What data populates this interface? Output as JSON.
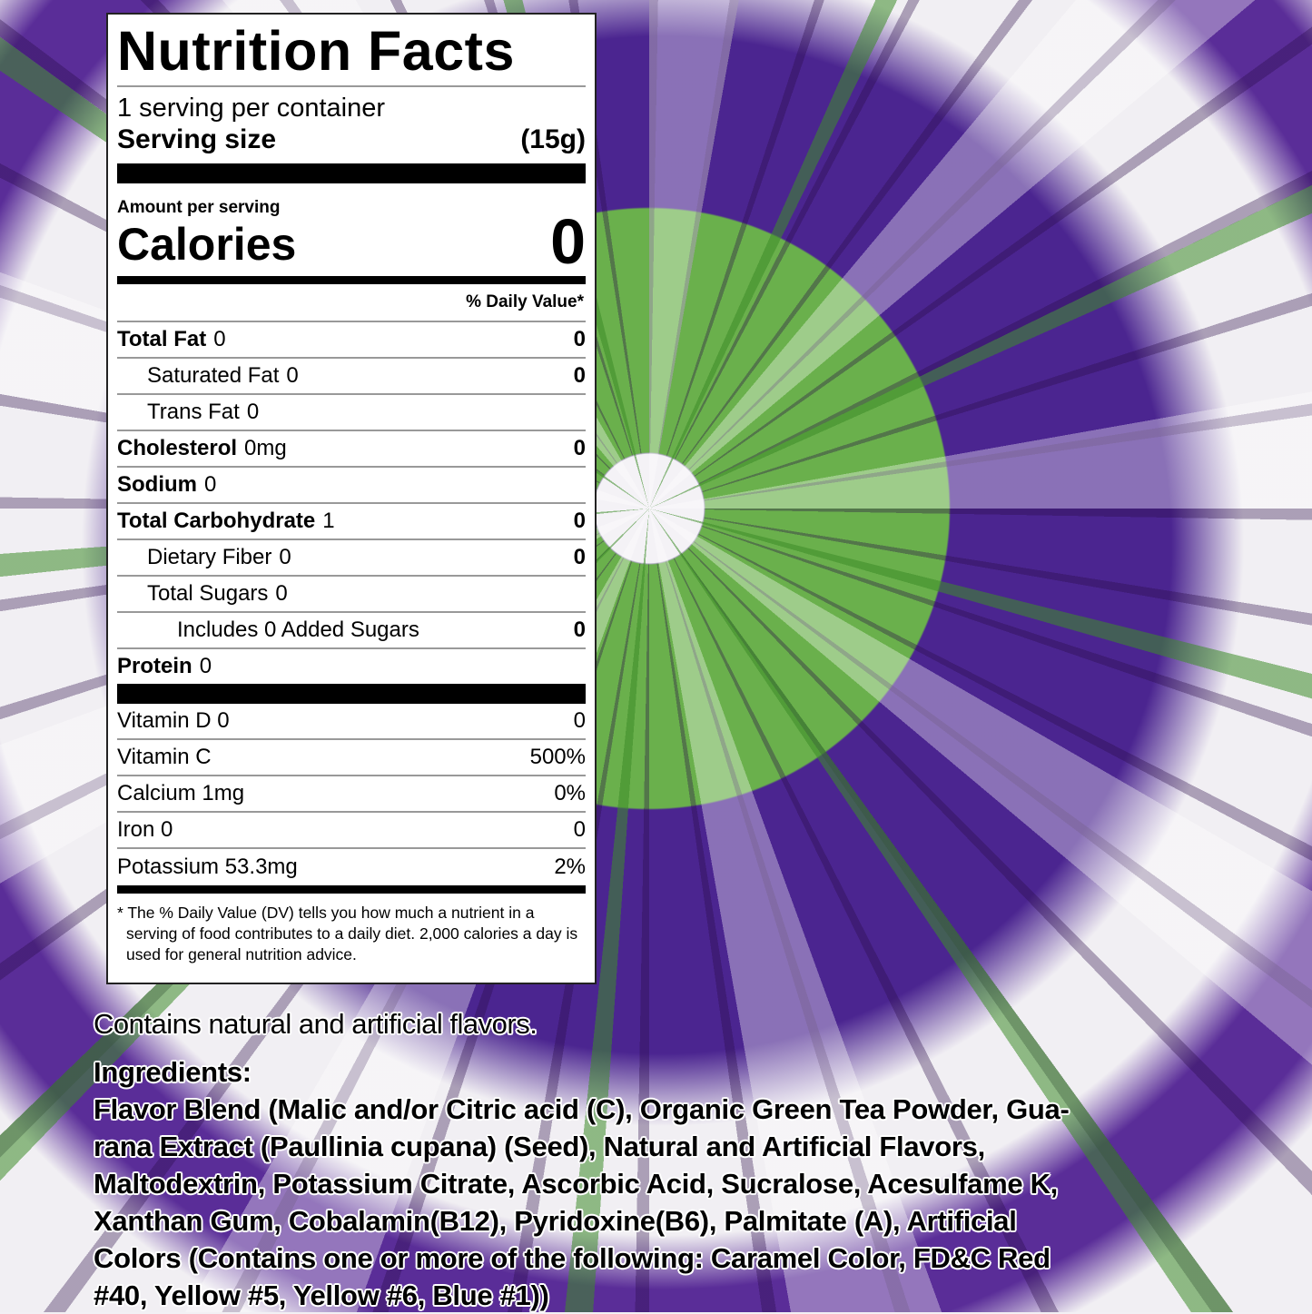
{
  "label": {
    "title": "Nutrition Facts",
    "servings_per_container": "1 serving per container",
    "serving_size_label": "Serving size",
    "serving_size_value": "(15g)",
    "amount_per_serving": "Amount per serving",
    "calories_label": "Calories",
    "calories_value": "0",
    "daily_value_header": "% Daily Value*",
    "nutrients": [
      {
        "name": "Total Fat",
        "amount": "0",
        "dv": "0",
        "bold": true,
        "indent": 0
      },
      {
        "name": "Saturated Fat",
        "amount": "0",
        "dv": "0",
        "bold": false,
        "indent": 1
      },
      {
        "name": "Trans Fat",
        "amount": "0",
        "dv": "",
        "bold": false,
        "indent": 1
      },
      {
        "name": "Cholesterol",
        "amount": "0mg",
        "dv": "0",
        "bold": true,
        "indent": 0
      },
      {
        "name": "Sodium",
        "amount": "0",
        "dv": "",
        "bold": true,
        "indent": 0
      },
      {
        "name": "Total Carbohydrate",
        "amount": "1",
        "dv": "0",
        "bold": true,
        "indent": 0
      },
      {
        "name": "Dietary Fiber",
        "amount": "0",
        "dv": "0",
        "bold": false,
        "indent": 1
      },
      {
        "name": "Total Sugars",
        "amount": "0",
        "dv": "",
        "bold": false,
        "indent": 1
      },
      {
        "name": "Includes 0 Added Sugars",
        "amount": "",
        "dv": "0",
        "bold": false,
        "indent": 2
      },
      {
        "name": "Protein",
        "amount": "0",
        "dv": "",
        "bold": true,
        "indent": 0
      }
    ],
    "vitamins": [
      {
        "name": "Vitamin D 0",
        "dv": "0"
      },
      {
        "name": "Vitamin C",
        "dv": "500%"
      },
      {
        "name": "Calcium 1mg",
        "dv": "0%"
      },
      {
        "name": "Iron 0",
        "dv": "0"
      },
      {
        "name": "Potassium 53.3mg",
        "dv": "2%"
      }
    ],
    "footnote": "* The % Daily Value (DV) tells you how much a nutrient in a serving of food contributes to a daily diet. 2,000 calories a day is used for general nutrition advice."
  },
  "contains": "Contains natural and artificial flavors.",
  "ingredients": {
    "heading": "Ingredients:",
    "lines": [
      "Flavor Blend (Malic and/or Citric acid (C), Organic Green Tea Powder, Gua-",
      "rana Extract (Paullinia cupana) (Seed), Natural and Artificial Flavors,",
      "Maltodextrin, Potassium Citrate, Ascorbic Acid, Sucralose, Acesulfame K,",
      "Xanthan Gum, Cobalamin(B12), Pyridoxine(B6), Palmitate (A), Artificial",
      "Colors (Contains one or more of the following: Caramel Color, FD&C Red",
      "#40, Yellow #5, Yellow #6, Blue #1))"
    ]
  },
  "colors": {
    "purple": "#4b2590",
    "green": "#6ab04c",
    "white": "#f1eff3"
  }
}
